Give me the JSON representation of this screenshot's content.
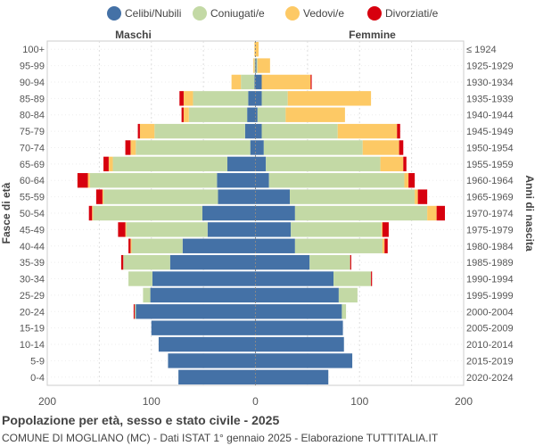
{
  "chart_data": {
    "type": "bar",
    "orientation": "horizontal-pyramid",
    "title": "Popolazione per età, sesso e stato civile - 2025",
    "subtitle": "COMUNE DI MOGLIANO (MC) - Dati ISTAT 1° gennaio 2025 - Elaborazione TUTTITALIA.IT",
    "left_label": "Maschi",
    "right_label": "Femmine",
    "ylabel_left": "Fasce di età",
    "ylabel_right": "Anni di nascita",
    "xlim": [
      -200,
      200
    ],
    "xticks": [
      -200,
      -100,
      0,
      100,
      200
    ],
    "xtick_labels": [
      "200",
      "100",
      "0",
      "100",
      "200"
    ],
    "grid": true,
    "legend_position": "top",
    "categories": [
      "100+",
      "95-99",
      "90-94",
      "85-89",
      "80-84",
      "75-79",
      "70-74",
      "65-69",
      "60-64",
      "55-59",
      "50-54",
      "45-49",
      "40-44",
      "35-39",
      "30-34",
      "25-29",
      "20-24",
      "15-19",
      "10-14",
      "5-9",
      "0-4"
    ],
    "birth_years": [
      "≤ 1924",
      "1925-1929",
      "1930-1934",
      "1935-1939",
      "1940-1944",
      "1945-1949",
      "1950-1954",
      "1955-1959",
      "1960-1964",
      "1965-1969",
      "1970-1974",
      "1975-1979",
      "1980-1984",
      "1985-1989",
      "1990-1994",
      "1995-1999",
      "2000-2004",
      "2005-2009",
      "2010-2014",
      "2015-2019",
      "2020-2024"
    ],
    "series": [
      {
        "name": "Celibi/Nubili",
        "color": "#4471a6",
        "male": [
          0,
          0,
          1,
          7,
          8,
          10,
          5,
          27,
          37,
          36,
          51,
          46,
          70,
          82,
          99,
          101,
          115,
          100,
          93,
          84,
          74
        ],
        "female": [
          0,
          1,
          6,
          6,
          2,
          6,
          8,
          10,
          13,
          33,
          38,
          34,
          38,
          52,
          75,
          80,
          83,
          84,
          85,
          93,
          70
        ]
      },
      {
        "name": "Coniugati/e",
        "color": "#c3d9a5",
        "male": [
          0,
          1,
          13,
          53,
          56,
          87,
          110,
          110,
          122,
          110,
          105,
          78,
          49,
          45,
          23,
          7,
          1,
          0,
          0,
          0,
          0
        ],
        "female": [
          0,
          1,
          0,
          25,
          27,
          73,
          95,
          110,
          130,
          120,
          127,
          87,
          84,
          39,
          36,
          18,
          4,
          0,
          0,
          0,
          0
        ]
      },
      {
        "name": "Vedovi/e",
        "color": "#fdc965",
        "male": [
          1,
          1,
          9,
          9,
          5,
          14,
          5,
          4,
          2,
          1,
          1,
          1,
          1,
          0,
          0,
          0,
          0,
          0,
          0,
          0,
          0
        ],
        "female": [
          3,
          12,
          47,
          80,
          57,
          57,
          35,
          22,
          4,
          3,
          9,
          1,
          2,
          0,
          0,
          0,
          0,
          0,
          0,
          0,
          0
        ]
      },
      {
        "name": "Divorziati/e",
        "color": "#d7000e",
        "male": [
          0,
          0,
          0,
          4,
          2,
          2,
          5,
          5,
          10,
          6,
          3,
          7,
          2,
          2,
          0,
          0,
          1,
          0,
          0,
          0,
          0
        ],
        "female": [
          0,
          0,
          1,
          0,
          0,
          3,
          4,
          3,
          6,
          9,
          8,
          6,
          3,
          1,
          1,
          0,
          0,
          0,
          0,
          0,
          0
        ]
      }
    ]
  }
}
